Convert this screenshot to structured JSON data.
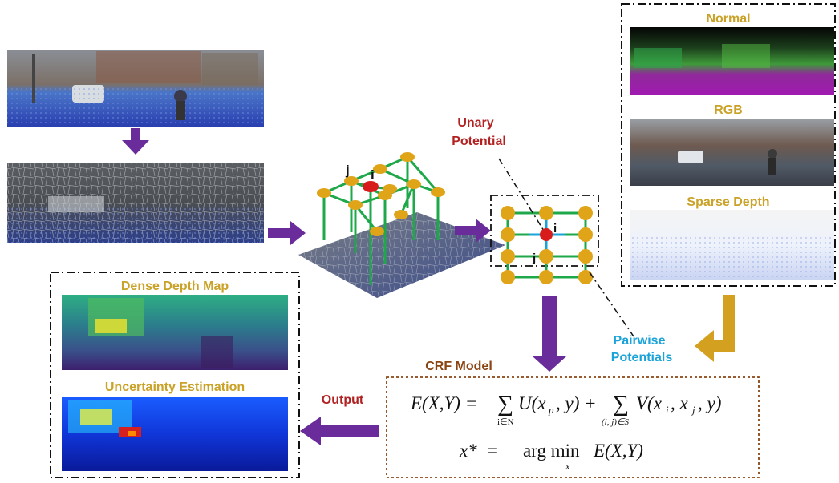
{
  "labels": {
    "unary_potential_line1": "Unary",
    "unary_potential_line2": "Potential",
    "normal": "Normal",
    "rgb": "RGB",
    "sparse_depth": "Sparse Depth",
    "pairwise_line1": "Pairwise",
    "pairwise_line2": "Potentials",
    "crf_model": "CRF Model",
    "output": "Output",
    "dense_depth_map": "Dense Depth Map",
    "uncertainty_estimation": "Uncertainty Estimation",
    "node_i_3d": "i",
    "node_j_3d": "j",
    "node_i_2d": "i",
    "node_j_2d": "j"
  },
  "equations": {
    "energy": "E(X,Y) = Σ_{i∈N} U(x_p, y) + Σ_{(i,j)∈S} V(x_i, x_j, y)",
    "argmin": "x* = argmin_x E(X,Y)"
  },
  "colors": {
    "purple_arrow": "#6a2c9a",
    "gold_arrow": "#d4a020",
    "label_gold": "#c9a227",
    "label_red": "#b22222",
    "label_cyan": "#1aa3d9",
    "node_gold": "#e0a418",
    "edge_green": "#1fa84a",
    "node_red": "#d81b1b",
    "crf_brown": "#8b4513"
  }
}
